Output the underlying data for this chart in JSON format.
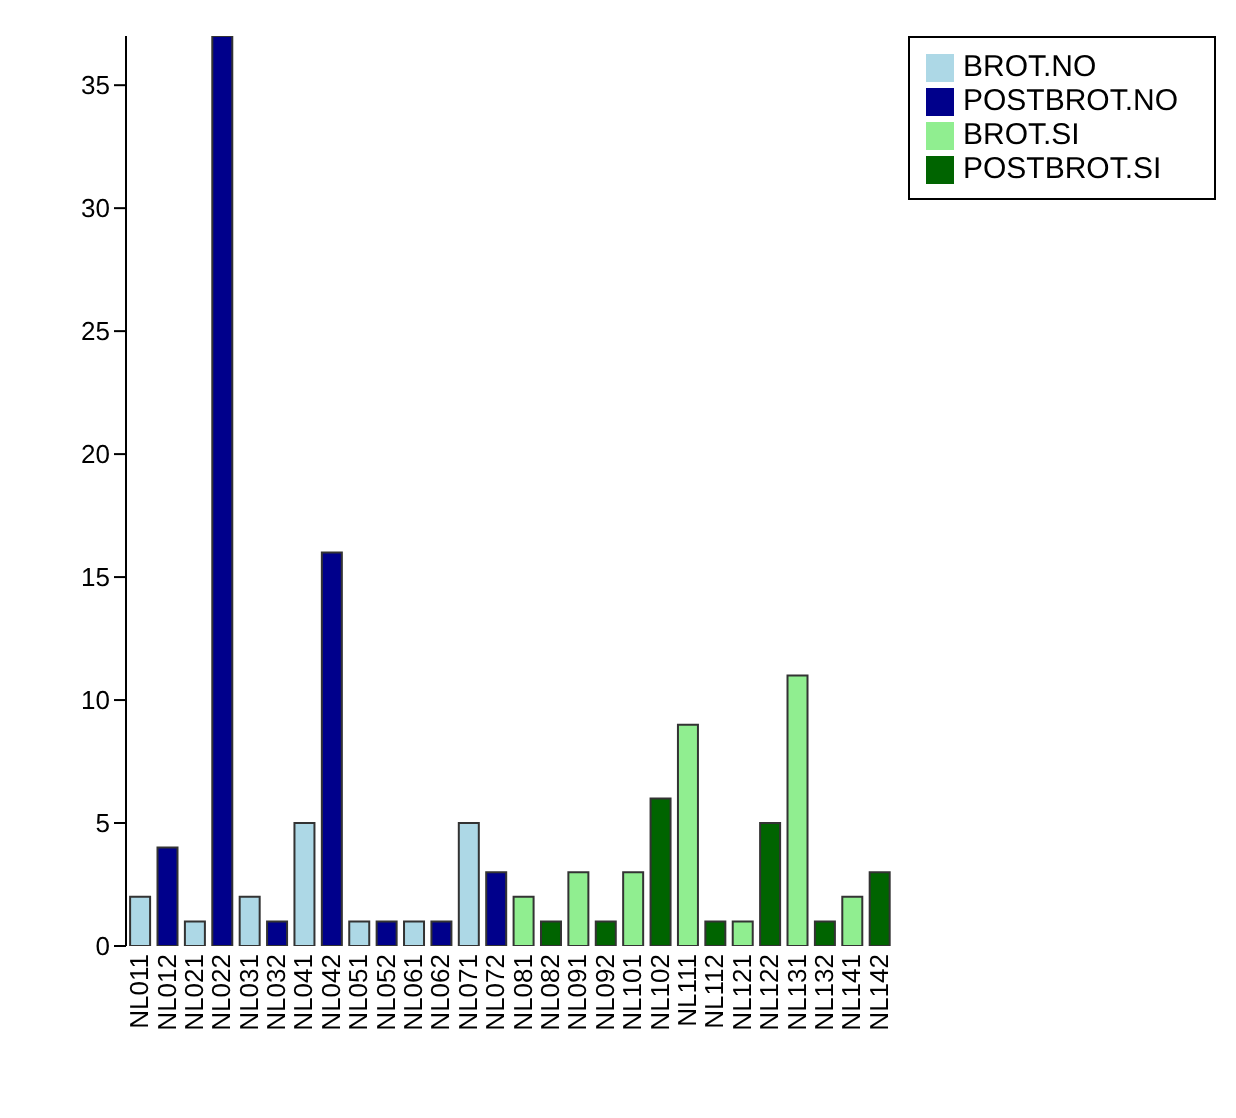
{
  "chart_data": {
    "type": "bar",
    "stacked": true,
    "categories": [
      "NL011",
      "NL012",
      "NL021",
      "NL022",
      "NL031",
      "NL032",
      "NL041",
      "NL042",
      "NL051",
      "NL052",
      "NL061",
      "NL062",
      "NL071",
      "NL072",
      "NL081",
      "NL082",
      "NL091",
      "NL092",
      "NL101",
      "NL102",
      "NL111",
      "NL112",
      "NL121",
      "NL122",
      "NL131",
      "NL132",
      "NL141",
      "NL142"
    ],
    "series": [
      {
        "name": "BROT.NO",
        "color": "#add8e6",
        "values": [
          2,
          null,
          1,
          null,
          2,
          null,
          5,
          null,
          1,
          null,
          1,
          null,
          5,
          null,
          null,
          null,
          null,
          null,
          null,
          null,
          null,
          null,
          null,
          null,
          null,
          null,
          null,
          null
        ]
      },
      {
        "name": "POSTBROT.NO",
        "color": "#00008b",
        "values": [
          null,
          4,
          null,
          37,
          null,
          1,
          null,
          16,
          null,
          1,
          null,
          1,
          null,
          3,
          null,
          null,
          null,
          null,
          null,
          null,
          null,
          null,
          null,
          null,
          null,
          null,
          null,
          null
        ]
      },
      {
        "name": "BROT.SI",
        "color": "#90ee90",
        "values": [
          null,
          null,
          null,
          null,
          null,
          null,
          null,
          null,
          null,
          null,
          null,
          null,
          null,
          null,
          2,
          null,
          3,
          null,
          3,
          null,
          9,
          null,
          1,
          null,
          11,
          null,
          2,
          null
        ]
      },
      {
        "name": "POSTBROT.SI",
        "color": "#006400",
        "values": [
          null,
          null,
          null,
          null,
          null,
          null,
          null,
          null,
          null,
          null,
          null,
          null,
          null,
          null,
          null,
          1,
          null,
          1,
          null,
          6,
          null,
          1,
          null,
          5,
          null,
          1,
          null,
          3
        ]
      }
    ],
    "ylim": [
      0,
      37
    ],
    "yticks": [
      0,
      5,
      10,
      15,
      20,
      25,
      30,
      35
    ],
    "grid": false,
    "legend": "top right"
  }
}
